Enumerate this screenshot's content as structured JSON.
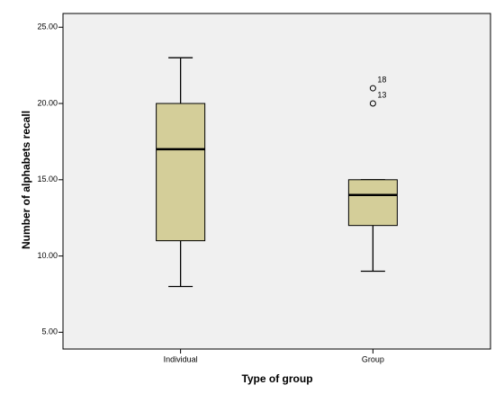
{
  "chart_data": {
    "type": "box",
    "x_label": "Type of group",
    "y_label": "Number of alphabets recall",
    "categories": [
      "Individual",
      "Group"
    ],
    "series": [
      {
        "color": "#d4ce99",
        "low": [
          8,
          9
        ],
        "q1": [
          11,
          12
        ],
        "median": [
          17,
          14
        ],
        "q3": [
          20,
          15
        ],
        "high": [
          23,
          15
        ],
        "outliers": [
          [],
          [
            {
              "value": 21,
              "case": "18"
            },
            {
              "value": 20,
              "case": "13"
            }
          ]
        ]
      }
    ],
    "ylim": [
      3.9,
      25.9
    ],
    "yticks": [
      {
        "value": 5,
        "label": "5.00"
      },
      {
        "value": 10,
        "label": "10.00"
      },
      {
        "value": 15,
        "label": "15.00"
      },
      {
        "value": 20,
        "label": "20.00"
      },
      {
        "value": 25,
        "label": "25.00"
      }
    ],
    "plot_background": "#f0f0f0"
  }
}
